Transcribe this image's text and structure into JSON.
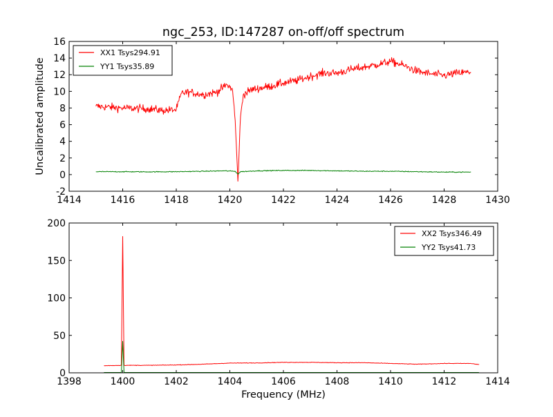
{
  "chart_data": [
    {
      "type": "line",
      "title": "ngc_253, ID:147287 on-off/off spectrum",
      "xlabel": "",
      "ylabel": "Uncalibrated amplitude",
      "xlim": [
        1414,
        1430
      ],
      "ylim": [
        -2,
        16
      ],
      "xticks": [
        1414,
        1416,
        1418,
        1420,
        1422,
        1424,
        1426,
        1428,
        1430
      ],
      "yticks": [
        -2,
        0,
        2,
        4,
        6,
        8,
        10,
        12,
        14,
        16
      ],
      "grid": false,
      "legend_position": "top-left",
      "series": [
        {
          "name": "XX1 Tsys294.91",
          "color": "#ff0000",
          "noise": 0.45,
          "x": [
            1415.0,
            1416.0,
            1417.0,
            1417.5,
            1418.0,
            1418.2,
            1418.5,
            1419.0,
            1419.5,
            1419.9,
            1420.1,
            1420.2,
            1420.3,
            1420.4,
            1420.5,
            1420.8,
            1421.5,
            1422.0,
            1422.5,
            1423.0,
            1423.5,
            1424.0,
            1424.5,
            1425.0,
            1425.5,
            1426.0,
            1426.5,
            1427.0,
            1427.5,
            1428.0,
            1428.5,
            1429.0
          ],
          "values": [
            8.2,
            8.0,
            7.9,
            7.7,
            7.8,
            9.8,
            9.9,
            9.6,
            9.9,
            10.8,
            10.2,
            6.5,
            -0.8,
            7.0,
            9.6,
            10.2,
            10.6,
            11.0,
            11.3,
            11.8,
            12.2,
            12.2,
            12.6,
            12.9,
            13.2,
            13.6,
            13.1,
            12.4,
            12.1,
            11.9,
            12.2,
            12.3
          ]
        },
        {
          "name": "YY1 Tsys35.89",
          "color": "#008000",
          "noise": 0.05,
          "x": [
            1415.0,
            1416.0,
            1417.0,
            1418.0,
            1419.0,
            1419.8,
            1420.2,
            1420.3,
            1420.4,
            1421.0,
            1422.0,
            1423.0,
            1424.0,
            1425.0,
            1426.0,
            1427.0,
            1428.0,
            1429.0
          ],
          "values": [
            0.35,
            0.35,
            0.33,
            0.35,
            0.4,
            0.45,
            0.4,
            0.05,
            0.35,
            0.45,
            0.5,
            0.5,
            0.45,
            0.4,
            0.4,
            0.35,
            0.3,
            0.3
          ]
        }
      ]
    },
    {
      "type": "line",
      "title": "",
      "xlabel": "Frequency (MHz)",
      "ylabel": "",
      "xlim": [
        1398,
        1414
      ],
      "ylim": [
        0,
        200
      ],
      "xticks": [
        1398,
        1400,
        1402,
        1404,
        1406,
        1408,
        1410,
        1412,
        1414
      ],
      "yticks": [
        0,
        50,
        100,
        150,
        200
      ],
      "grid": false,
      "legend_position": "top-right",
      "series": [
        {
          "name": "XX2 Tsys346.49",
          "color": "#ff0000",
          "noise": 0.35,
          "x": [
            1399.3,
            1399.95,
            1400.0,
            1400.05,
            1401.0,
            1402.0,
            1403.0,
            1404.0,
            1405.0,
            1406.0,
            1407.0,
            1408.0,
            1409.0,
            1410.0,
            1411.0,
            1412.0,
            1413.0,
            1413.3
          ],
          "values": [
            9.5,
            10.0,
            182,
            10.0,
            10.0,
            10.5,
            11.5,
            13.0,
            13.2,
            14.0,
            14.0,
            13.5,
            13.5,
            12.5,
            11.5,
            12.5,
            12.5,
            11.0
          ]
        },
        {
          "name": "YY2 Tsys41.73",
          "color": "#008000",
          "noise": 0.0,
          "x": [
            1399.3,
            1399.95,
            1400.0,
            1400.05,
            1413.3
          ],
          "values": [
            0.5,
            0.5,
            42,
            0.5,
            0.5
          ]
        }
      ]
    }
  ]
}
